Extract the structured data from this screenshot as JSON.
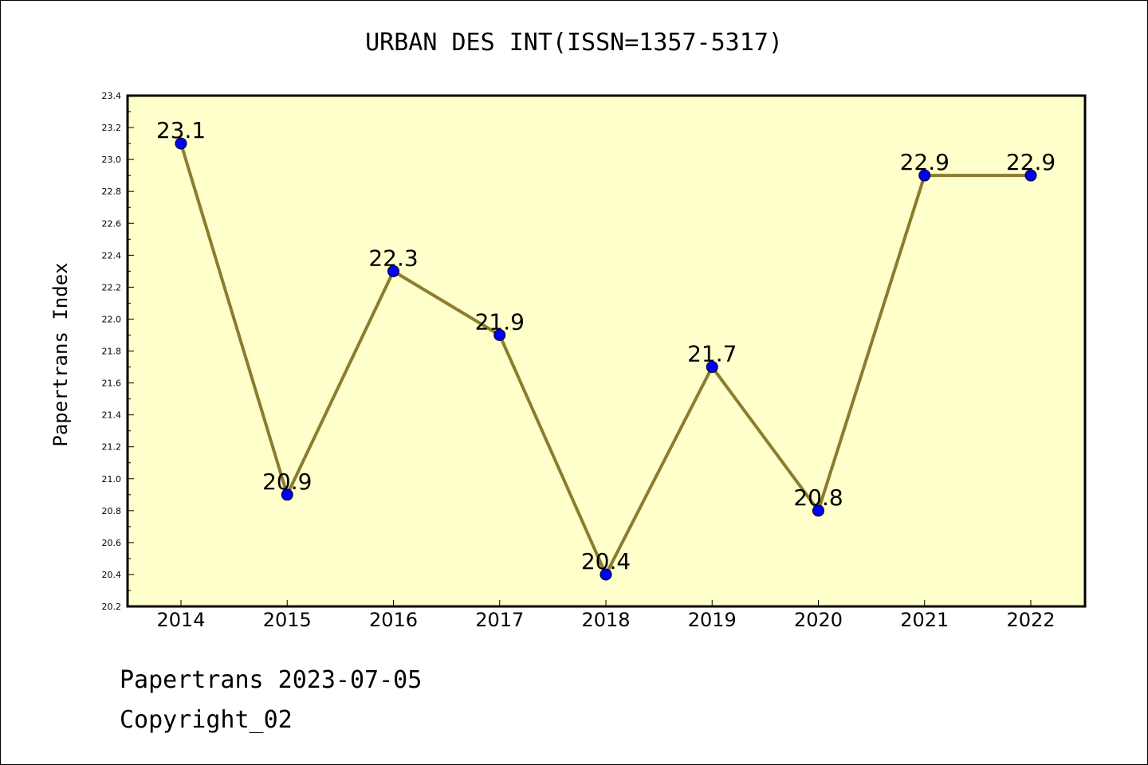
{
  "title": "URBAN DES INT(ISSN=1357-5317)",
  "footer": {
    "line1": "Papertrans 2023-07-05",
    "line2": "Copyright_02"
  },
  "colors": {
    "plot_bg": "#ffffcc",
    "line": "#8b7d2e",
    "marker": "#0000ff",
    "axis": "#000000"
  },
  "chart_data": {
    "type": "line",
    "title": "URBAN DES INT(ISSN=1357-5317)",
    "xlabel": "",
    "ylabel": "Papertrans Index",
    "categories": [
      "2014",
      "2015",
      "2016",
      "2017",
      "2018",
      "2019",
      "2020",
      "2021",
      "2022"
    ],
    "values": [
      23.1,
      20.9,
      22.3,
      21.9,
      20.4,
      21.7,
      20.8,
      22.9,
      22.9
    ],
    "value_labels": [
      "23.1",
      "20.9",
      "22.3",
      "21.9",
      "20.4",
      "21.7",
      "20.8",
      "22.9",
      "22.9"
    ],
    "ylim": [
      20.2,
      23.4
    ],
    "yticks": [
      "20.2",
      "20.4",
      "20.6",
      "20.8",
      "21.0",
      "21.2",
      "21.4",
      "21.6",
      "21.8",
      "22.0",
      "22.2",
      "22.4",
      "22.6",
      "22.8",
      "23.0",
      "23.2",
      "23.4"
    ],
    "grid": false,
    "legend": "none"
  }
}
